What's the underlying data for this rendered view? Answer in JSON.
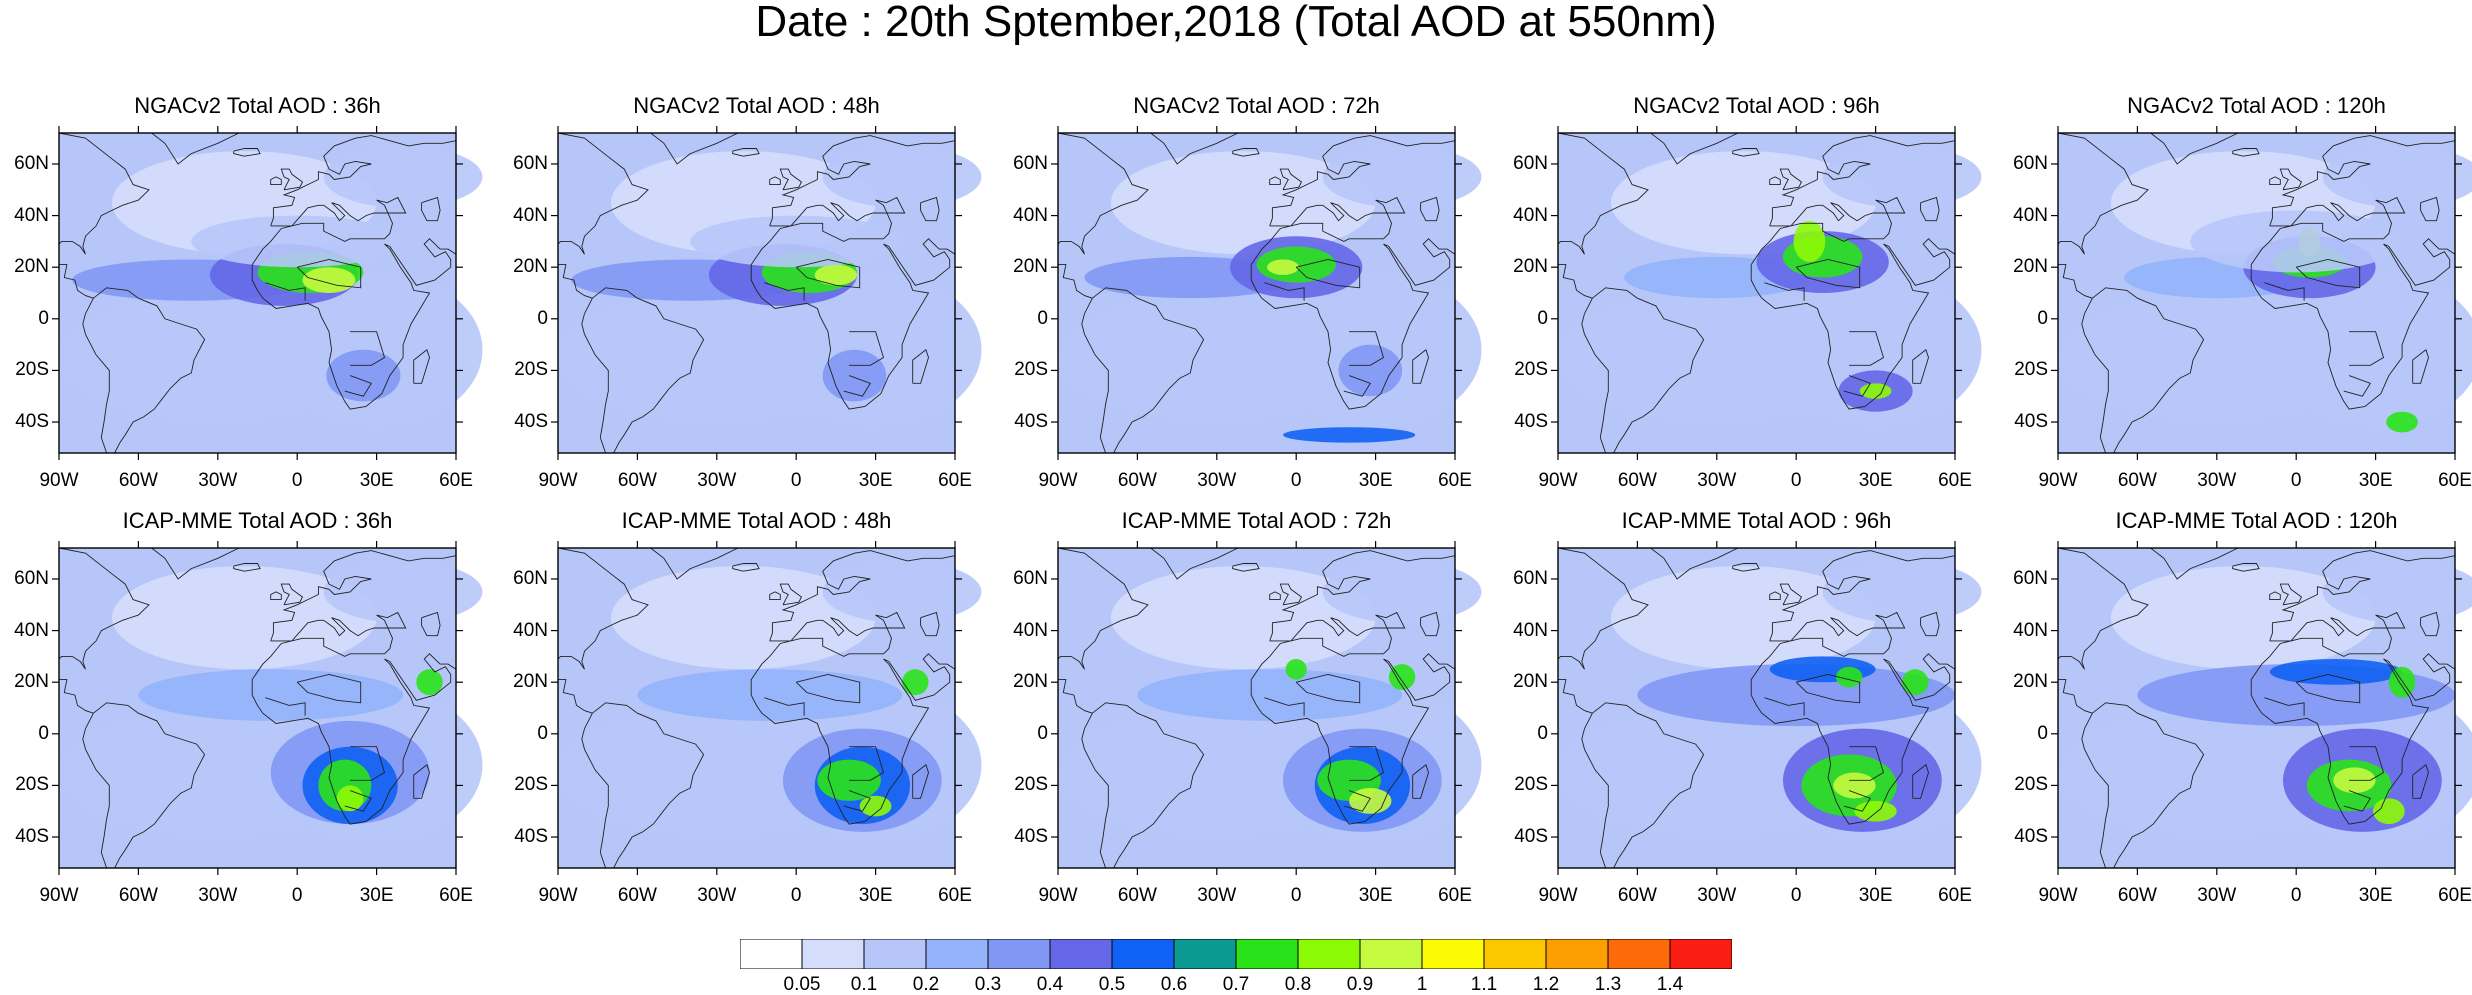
{
  "title": "Date : 20th Sptember,2018 (Total AOD at 550nm)",
  "rows": [
    {
      "model": "NGACv2",
      "panels": [
        {
          "title": "NGACv2 Total AOD : 36h"
        },
        {
          "title": "NGACv2 Total AOD : 48h"
        },
        {
          "title": "NGACv2 Total AOD : 72h"
        },
        {
          "title": "NGACv2 Total AOD : 96h"
        },
        {
          "title": "NGACv2 Total AOD : 120h"
        }
      ]
    },
    {
      "model": "ICAP-MME",
      "panels": [
        {
          "title": "ICAP-MME Total AOD : 36h"
        },
        {
          "title": "ICAP-MME Total AOD : 48h"
        },
        {
          "title": "ICAP-MME Total AOD : 72h"
        },
        {
          "title": "ICAP-MME Total AOD : 96h"
        },
        {
          "title": "ICAP-MME Total AOD : 120h"
        }
      ]
    }
  ],
  "lon_ticks": [
    "90W",
    "60W",
    "30W",
    "0",
    "30E",
    "60E"
  ],
  "lat_ticks": [
    "60N",
    "40N",
    "20N",
    "0",
    "20S",
    "40S"
  ],
  "extent": {
    "lon": [
      -90,
      60
    ],
    "lat": [
      -52,
      72
    ]
  },
  "colorbar": {
    "labels": [
      "0.05",
      "0.1",
      "0.2",
      "0.3",
      "0.4",
      "0.5",
      "0.6",
      "0.7",
      "0.8",
      "0.9",
      "1",
      "1.1",
      "1.2",
      "1.3",
      "1.4"
    ],
    "colors": [
      "#ffffff",
      "#d5ddfc",
      "#b7c6f9",
      "#93b2fb",
      "#8297f4",
      "#6467e8",
      "#0f62f3",
      "#0a9a91",
      "#2ae21a",
      "#8dfa05",
      "#c5fa3f",
      "#fcfb03",
      "#fdc700",
      "#fd9e00",
      "#fd6a0a",
      "#fa1d14"
    ]
  }
}
